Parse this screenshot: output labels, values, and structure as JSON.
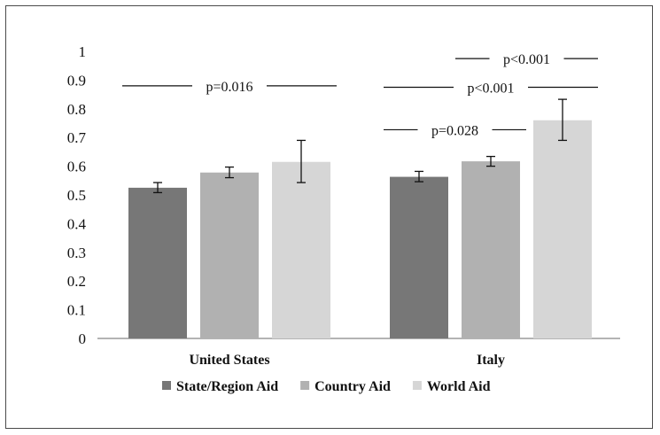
{
  "chart_data": {
    "type": "bar",
    "title": "",
    "xlabel": "",
    "ylabel": "",
    "ylim": [
      0,
      1
    ],
    "yticks": [
      "0",
      "0.1",
      "0.2",
      "0.3",
      "0.4",
      "0.5",
      "0.6",
      "0.7",
      "0.8",
      "0.9",
      "1"
    ],
    "grid": false,
    "legend_position": "bottom",
    "categories": [
      "United States",
      "Italy"
    ],
    "series": [
      {
        "name": "State/Region Aid",
        "color": "#777777",
        "values": [
          0.525,
          0.563
        ],
        "err_low": [
          0.508,
          0.546
        ],
        "err_high": [
          0.543,
          0.582
        ]
      },
      {
        "name": "Country Aid",
        "color": "#b1b1b1",
        "values": [
          0.578,
          0.617
        ],
        "err_low": [
          0.56,
          0.6
        ],
        "err_high": [
          0.597,
          0.634
        ]
      },
      {
        "name": "World Aid",
        "color": "#d6d6d6",
        "values": [
          0.615,
          0.76
        ],
        "err_low": [
          0.543,
          0.69
        ],
        "err_high": [
          0.69,
          0.833
        ]
      }
    ],
    "annotations": [
      {
        "text": "p=0.016",
        "y": 0.88,
        "category": "United States",
        "from": "State/Region Aid",
        "to": "World Aid"
      },
      {
        "text": "p<0.001",
        "y": 0.975,
        "category": "Italy",
        "from": "Country Aid",
        "to": "World Aid"
      },
      {
        "text": "p<0.001",
        "y": 0.875,
        "category": "Italy",
        "from": "State/Region Aid",
        "to": "World Aid"
      },
      {
        "text": "p=0.028",
        "y": 0.727,
        "category": "Italy",
        "from": "State/Region Aid",
        "to": "Country Aid"
      }
    ]
  }
}
